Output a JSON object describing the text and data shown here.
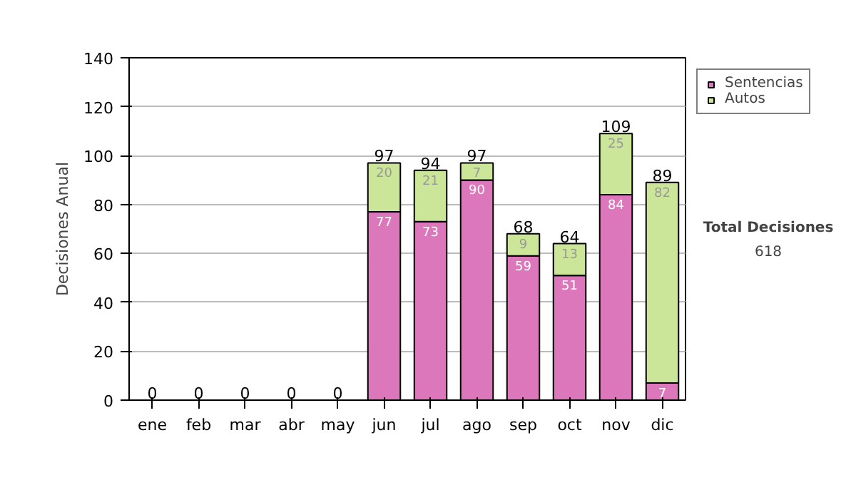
{
  "chart_data": {
    "type": "bar",
    "stacked": true,
    "ylabel": "Decisiones Anual",
    "categories": [
      "ene",
      "feb",
      "mar",
      "abr",
      "may",
      "jun",
      "jul",
      "ago",
      "sep",
      "oct",
      "nov",
      "dic"
    ],
    "series": [
      {
        "name": "Sentencias",
        "color": "#dd77bb",
        "values": [
          0,
          0,
          0,
          0,
          0,
          77,
          73,
          90,
          59,
          51,
          84,
          7
        ],
        "value_labels": [
          null,
          null,
          null,
          null,
          null,
          "77",
          "73",
          "90",
          "59",
          "51",
          "84",
          "7"
        ]
      },
      {
        "name": "Autos",
        "color": "#cce699",
        "values": [
          0,
          0,
          0,
          0,
          0,
          20,
          21,
          7,
          9,
          13,
          25,
          82
        ],
        "value_labels": [
          null,
          null,
          null,
          null,
          null,
          "20",
          "21",
          "7",
          "9",
          "13",
          "25",
          "82"
        ]
      }
    ],
    "totals": [
      "0",
      "0",
      "0",
      "0",
      "0",
      "97",
      "94",
      "97",
      "68",
      "64",
      "109",
      "89"
    ],
    "ylim": [
      0,
      140
    ],
    "yticks": [
      0,
      20,
      40,
      60,
      80,
      100,
      120,
      140
    ],
    "grid": "y",
    "legend": "right",
    "annotations": [
      "Total Decisiones",
      "618"
    ]
  }
}
